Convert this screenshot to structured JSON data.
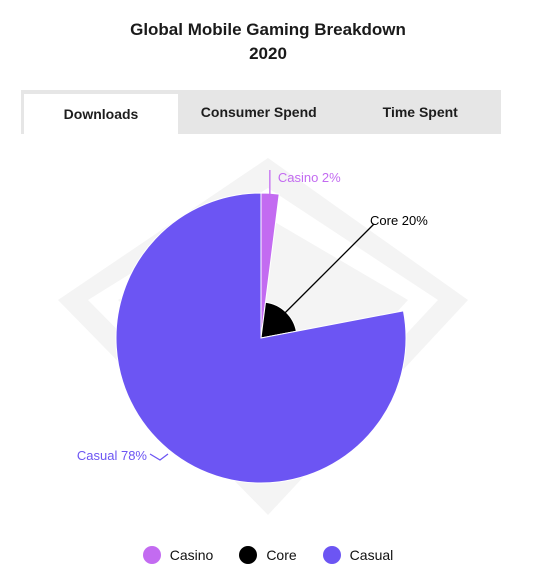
{
  "title_line1": "Global Mobile Gaming Breakdown",
  "title_line2": "2020",
  "tabs": [
    {
      "label": "Downloads",
      "active": true
    },
    {
      "label": "Consumer Spend",
      "active": false
    },
    {
      "label": "Time Spent",
      "active": false
    }
  ],
  "chart_data": {
    "type": "pie",
    "title": "Global Mobile Gaming Breakdown 2020",
    "slices": [
      {
        "name": "Casino",
        "value": 2,
        "label": "Casino 2%",
        "color": "#c36bf1"
      },
      {
        "name": "Core",
        "value": 20,
        "label": "Core 20%",
        "color": "#000000"
      },
      {
        "name": "Casual",
        "value": 78,
        "label": "Casual 78%",
        "color": "#6c55f3"
      }
    ],
    "legend": {
      "placement": "bottom",
      "items": [
        "Casino",
        "Core",
        "Casual"
      ]
    }
  }
}
